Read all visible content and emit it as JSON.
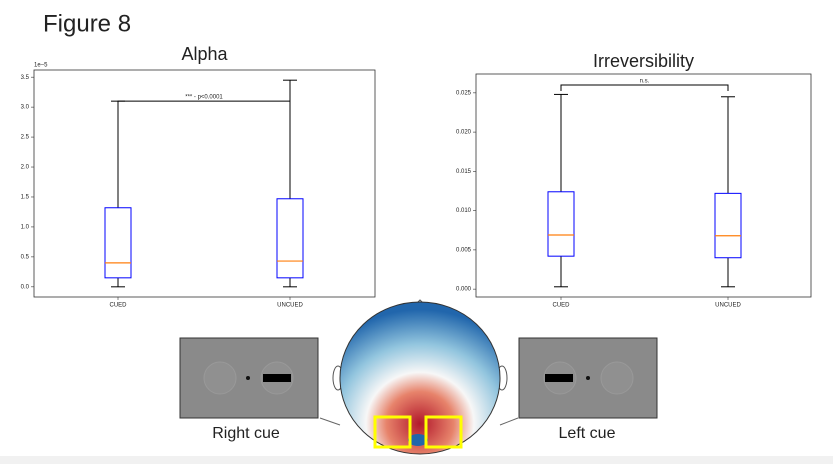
{
  "figure_title": "Figure 8",
  "chart_data": [
    {
      "type": "box",
      "title": "Alpha",
      "offset_label": "1e−5",
      "categories": [
        "CUED",
        "UNCUED"
      ],
      "boxes": [
        {
          "min": 0.0,
          "q1": 0.15,
          "median": 0.4,
          "q3": 1.32,
          "max": 3.1
        },
        {
          "min": 0.0,
          "q1": 0.15,
          "median": 0.43,
          "q3": 1.47,
          "max": 3.45
        }
      ],
      "box_color": "#0000ff",
      "median_color": "#ff7f0e",
      "ylim": [
        -0.17,
        3.62
      ],
      "yticks": [
        {
          "value": 0,
          "label": "0.0"
        },
        {
          "value": 0.5,
          "label": "0.5"
        },
        {
          "value": 1,
          "label": "1.0"
        },
        {
          "value": 1.5,
          "label": "1.5"
        },
        {
          "value": 2,
          "label": "2.0"
        },
        {
          "value": 2.5,
          "label": "2.5"
        },
        {
          "value": 3,
          "label": "3.0"
        },
        {
          "value": 3.5,
          "label": "3.5"
        }
      ],
      "annotation": {
        "text": "*** - p<0.0001",
        "y": 3.1
      }
    },
    {
      "type": "box",
      "title": "Irreversibility",
      "categories": [
        "CUED",
        "UNCUED"
      ],
      "boxes": [
        {
          "min": 0.0003,
          "q1": 0.0042,
          "median": 0.0069,
          "q3": 0.0124,
          "max": 0.0248
        },
        {
          "min": 0.0003,
          "q1": 0.004,
          "median": 0.0068,
          "q3": 0.0122,
          "max": 0.0245
        }
      ],
      "box_color": "#0000ff",
      "median_color": "#ff7f0e",
      "ylim": [
        -0.001,
        0.0274
      ],
      "yticks": [
        {
          "value": 0,
          "label": "0.000"
        },
        {
          "value": 0.005,
          "label": "0.005"
        },
        {
          "value": 0.01,
          "label": "0.010"
        },
        {
          "value": 0.015,
          "label": "0.015"
        },
        {
          "value": 0.02,
          "label": "0.020"
        },
        {
          "value": 0.025,
          "label": "0.025"
        }
      ],
      "annotation": {
        "text": "n.s.",
        "y": 0.026
      }
    }
  ],
  "captions": {
    "left": "Right cue",
    "right": "Left cue"
  }
}
